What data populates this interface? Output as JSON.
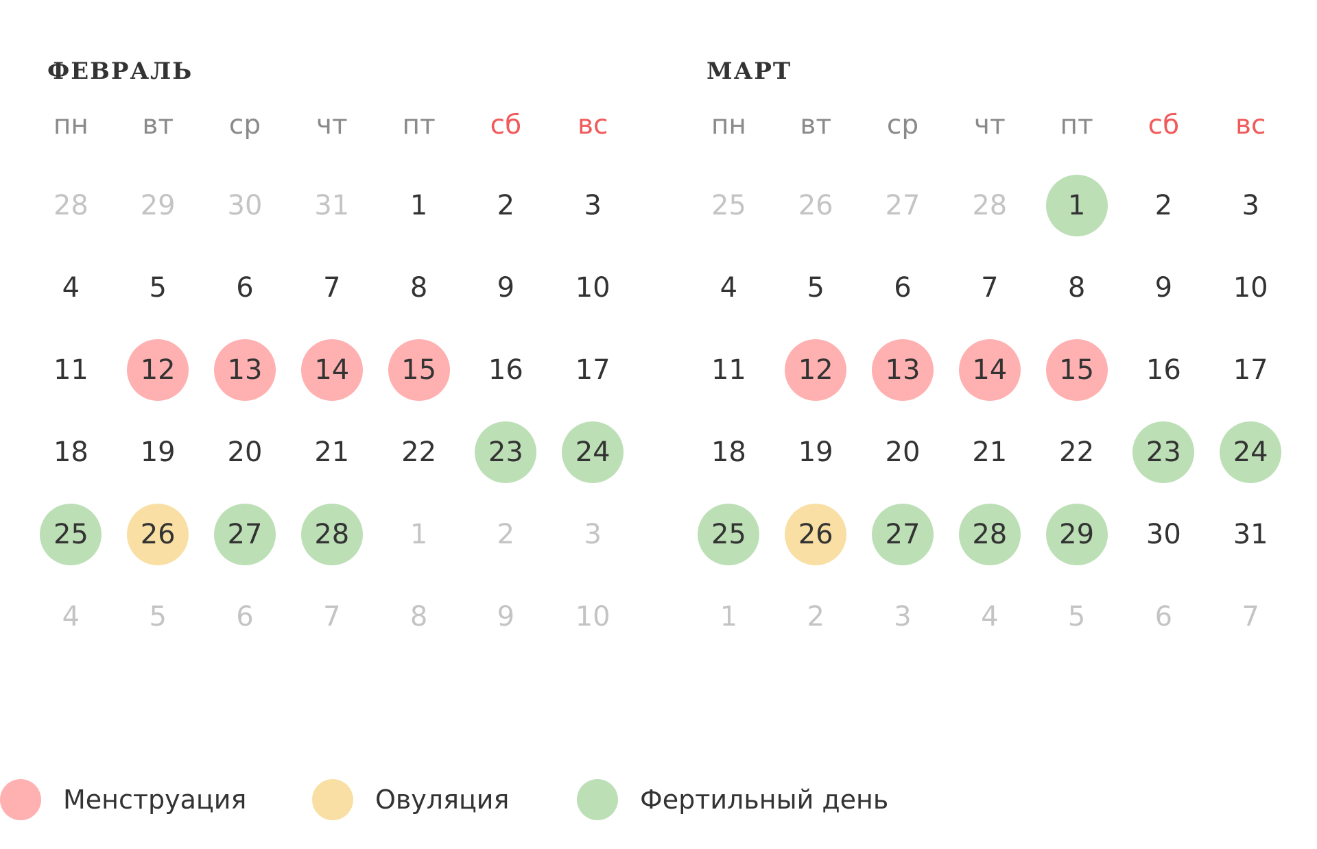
{
  "colors": {
    "menstruation": "#ffb0b0",
    "ovulation": "#f9dfa3",
    "fertile": "#bcdfb6",
    "weekend_label": "#f05a5a",
    "weekday_label": "#8a8a8a",
    "other_month_day": "#c4c4c4",
    "text": "#333333"
  },
  "weekdays": [
    "пн",
    "вт",
    "ср",
    "чт",
    "пт",
    "сб",
    "вс"
  ],
  "months": [
    {
      "title": "ФЕВРАЛЬ",
      "weeks": [
        [
          {
            "d": "28",
            "o": true
          },
          {
            "d": "29",
            "o": true
          },
          {
            "d": "30",
            "o": true
          },
          {
            "d": "31",
            "o": true
          },
          {
            "d": "1"
          },
          {
            "d": "2"
          },
          {
            "d": "3"
          }
        ],
        [
          {
            "d": "4"
          },
          {
            "d": "5"
          },
          {
            "d": "6"
          },
          {
            "d": "7"
          },
          {
            "d": "8"
          },
          {
            "d": "9"
          },
          {
            "d": "10"
          }
        ],
        [
          {
            "d": "11"
          },
          {
            "d": "12",
            "m": "menstruation"
          },
          {
            "d": "13",
            "m": "menstruation"
          },
          {
            "d": "14",
            "m": "menstruation"
          },
          {
            "d": "15",
            "m": "menstruation"
          },
          {
            "d": "16"
          },
          {
            "d": "17"
          }
        ],
        [
          {
            "d": "18"
          },
          {
            "d": "19"
          },
          {
            "d": "20"
          },
          {
            "d": "21"
          },
          {
            "d": "22"
          },
          {
            "d": "23",
            "m": "fertile"
          },
          {
            "d": "24",
            "m": "fertile"
          }
        ],
        [
          {
            "d": "25",
            "m": "fertile"
          },
          {
            "d": "26",
            "m": "ovulation"
          },
          {
            "d": "27",
            "m": "fertile"
          },
          {
            "d": "28",
            "m": "fertile"
          },
          {
            "d": "1",
            "o": true
          },
          {
            "d": "2",
            "o": true
          },
          {
            "d": "3",
            "o": true
          }
        ],
        [
          {
            "d": "4",
            "o": true
          },
          {
            "d": "5",
            "o": true
          },
          {
            "d": "6",
            "o": true
          },
          {
            "d": "7",
            "o": true
          },
          {
            "d": "8",
            "o": true
          },
          {
            "d": "9",
            "o": true
          },
          {
            "d": "10",
            "o": true
          }
        ]
      ]
    },
    {
      "title": "МАРТ",
      "weeks": [
        [
          {
            "d": "25",
            "o": true
          },
          {
            "d": "26",
            "o": true
          },
          {
            "d": "27",
            "o": true
          },
          {
            "d": "28",
            "o": true
          },
          {
            "d": "1",
            "m": "fertile"
          },
          {
            "d": "2"
          },
          {
            "d": "3"
          }
        ],
        [
          {
            "d": "4"
          },
          {
            "d": "5"
          },
          {
            "d": "6"
          },
          {
            "d": "7"
          },
          {
            "d": "8"
          },
          {
            "d": "9"
          },
          {
            "d": "10"
          }
        ],
        [
          {
            "d": "11"
          },
          {
            "d": "12",
            "m": "menstruation"
          },
          {
            "d": "13",
            "m": "menstruation"
          },
          {
            "d": "14",
            "m": "menstruation"
          },
          {
            "d": "15",
            "m": "menstruation"
          },
          {
            "d": "16"
          },
          {
            "d": "17"
          }
        ],
        [
          {
            "d": "18"
          },
          {
            "d": "19"
          },
          {
            "d": "20"
          },
          {
            "d": "21"
          },
          {
            "d": "22"
          },
          {
            "d": "23",
            "m": "fertile"
          },
          {
            "d": "24",
            "m": "fertile"
          }
        ],
        [
          {
            "d": "25",
            "m": "fertile"
          },
          {
            "d": "26",
            "m": "ovulation"
          },
          {
            "d": "27",
            "m": "fertile"
          },
          {
            "d": "28",
            "m": "fertile"
          },
          {
            "d": "29",
            "m": "fertile"
          },
          {
            "d": "30"
          },
          {
            "d": "31"
          }
        ],
        [
          {
            "d": "1",
            "o": true
          },
          {
            "d": "2",
            "o": true
          },
          {
            "d": "3",
            "o": true
          },
          {
            "d": "4",
            "o": true
          },
          {
            "d": "5",
            "o": true
          },
          {
            "d": "6",
            "o": true
          },
          {
            "d": "7",
            "o": true
          }
        ]
      ]
    }
  ],
  "legend": [
    {
      "key": "menstruation",
      "label": "Менструация"
    },
    {
      "key": "ovulation",
      "label": "Овуляция"
    },
    {
      "key": "fertile",
      "label": "Фертильный день"
    }
  ]
}
